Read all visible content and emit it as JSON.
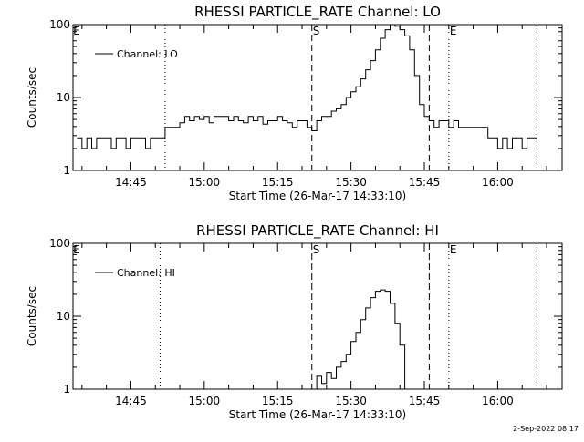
{
  "footer_date": "2-Sep-2022 08:17",
  "chart_data": [
    {
      "type": "line",
      "title": "RHESSI PARTICLE_RATE Channel: LO",
      "xlabel": "Start Time (26-Mar-17 14:33:10)",
      "ylabel": "Counts/sec",
      "y_scale": "log",
      "ylim": [
        1,
        100
      ],
      "y_ticks": [
        "1",
        "10",
        "100"
      ],
      "x_ticks": [
        "14:45",
        "15:00",
        "15:15",
        "15:30",
        "15:45",
        "16:00"
      ],
      "legend": "Channel: LO",
      "legend_position": "top-left",
      "markers": [
        {
          "label": "E",
          "time": "14:33",
          "style": "none"
        },
        {
          "label": "",
          "time": "14:52",
          "style": "dotted"
        },
        {
          "label": "S",
          "time": "15:22",
          "style": "dashed"
        },
        {
          "label": "",
          "time": "15:46",
          "style": "dashed"
        },
        {
          "label": "E",
          "time": "15:50",
          "style": "dotted"
        },
        {
          "label": "",
          "time": "16:08",
          "style": "dotted"
        }
      ],
      "series": [
        {
          "x": [
            "14:34",
            "14:35",
            "14:36",
            "14:37",
            "14:38",
            "14:39",
            "14:40",
            "14:41",
            "14:42",
            "14:43",
            "14:44",
            "14:45",
            "14:46",
            "14:47",
            "14:48",
            "14:49",
            "14:50",
            "14:51",
            "14:52",
            "14:53",
            "14:54",
            "14:55",
            "14:56",
            "14:57",
            "14:58",
            "14:59",
            "15:00",
            "15:01",
            "15:02",
            "15:03",
            "15:04",
            "15:05",
            "15:06",
            "15:07",
            "15:08",
            "15:09",
            "15:10",
            "15:11",
            "15:12",
            "15:13",
            "15:14",
            "15:15",
            "15:16",
            "15:17",
            "15:18",
            "15:19",
            "15:20",
            "15:21",
            "15:22",
            "15:23",
            "15:24",
            "15:25",
            "15:26",
            "15:27",
            "15:28",
            "15:29",
            "15:30",
            "15:31",
            "15:32",
            "15:33",
            "15:34",
            "15:35",
            "15:36",
            "15:37",
            "15:38",
            "15:39",
            "15:40",
            "15:41",
            "15:42",
            "15:43",
            "15:44",
            "15:45",
            "15:46",
            "15:47",
            "15:48",
            "15:49",
            "15:50",
            "15:51",
            "15:52",
            "15:53",
            "15:54",
            "15:55",
            "15:56",
            "15:57",
            "15:58",
            "15:59",
            "16:00",
            "16:01",
            "16:02",
            "16:03",
            "16:04",
            "16:05",
            "16:06",
            "16:07"
          ],
          "values": [
            2.8,
            2,
            2.8,
            2,
            2.8,
            2.8,
            2.8,
            2,
            2.8,
            2.8,
            2,
            2.8,
            2.8,
            2.8,
            2,
            2.8,
            2.8,
            2.8,
            3.9,
            3.9,
            3.9,
            4.5,
            5.5,
            4.8,
            5.5,
            5,
            5.5,
            4.5,
            5.5,
            5.5,
            5.5,
            4.8,
            5.5,
            4.8,
            4.5,
            5.5,
            4.8,
            5.5,
            4.3,
            4.8,
            4.8,
            5.5,
            4.8,
            4.5,
            3.9,
            4.8,
            4.8,
            3.9,
            3.5,
            4.8,
            5.5,
            5.5,
            6.5,
            7,
            8,
            10,
            12,
            14,
            18,
            24,
            32,
            45,
            65,
            85,
            100,
            95,
            85,
            70,
            45,
            20,
            8,
            5.5,
            4.8,
            3.9,
            4.8,
            4.8,
            3.9,
            4.8,
            3.9,
            3.9,
            3.9,
            3.9,
            3.9,
            3.9,
            2.8,
            2.8,
            2,
            2.8,
            2,
            2.8,
            2.8,
            2,
            2.8,
            2.8
          ]
        }
      ]
    },
    {
      "type": "line",
      "title": "RHESSI PARTICLE_RATE Channel: HI",
      "xlabel": "Start Time (26-Mar-17 14:33:10)",
      "ylabel": "Counts/sec",
      "y_scale": "log",
      "ylim": [
        1,
        100
      ],
      "y_ticks": [
        "1",
        "10",
        "100"
      ],
      "x_ticks": [
        "14:45",
        "15:00",
        "15:15",
        "15:30",
        "15:45",
        "16:00"
      ],
      "legend": "Channel: HI",
      "legend_position": "top-left",
      "markers": [
        {
          "label": "E",
          "time": "14:33",
          "style": "none"
        },
        {
          "label": "",
          "time": "14:51",
          "style": "dotted"
        },
        {
          "label": "S",
          "time": "15:22",
          "style": "dashed"
        },
        {
          "label": "",
          "time": "15:46",
          "style": "dashed"
        },
        {
          "label": "E",
          "time": "15:50",
          "style": "dotted"
        },
        {
          "label": "",
          "time": "16:08",
          "style": "dotted"
        }
      ],
      "series": [
        {
          "x": [
            "15:22",
            "15:23",
            "15:24",
            "15:25",
            "15:26",
            "15:27",
            "15:28",
            "15:29",
            "15:30",
            "15:31",
            "15:32",
            "15:33",
            "15:34",
            "15:35",
            "15:36",
            "15:37",
            "15:38",
            "15:39",
            "15:40",
            "15:41"
          ],
          "values": [
            1,
            1.5,
            1.2,
            1.7,
            1.4,
            2,
            2.4,
            3,
            4.5,
            6,
            9,
            13,
            18,
            22,
            23,
            22,
            15,
            8,
            4,
            1
          ]
        }
      ]
    }
  ]
}
